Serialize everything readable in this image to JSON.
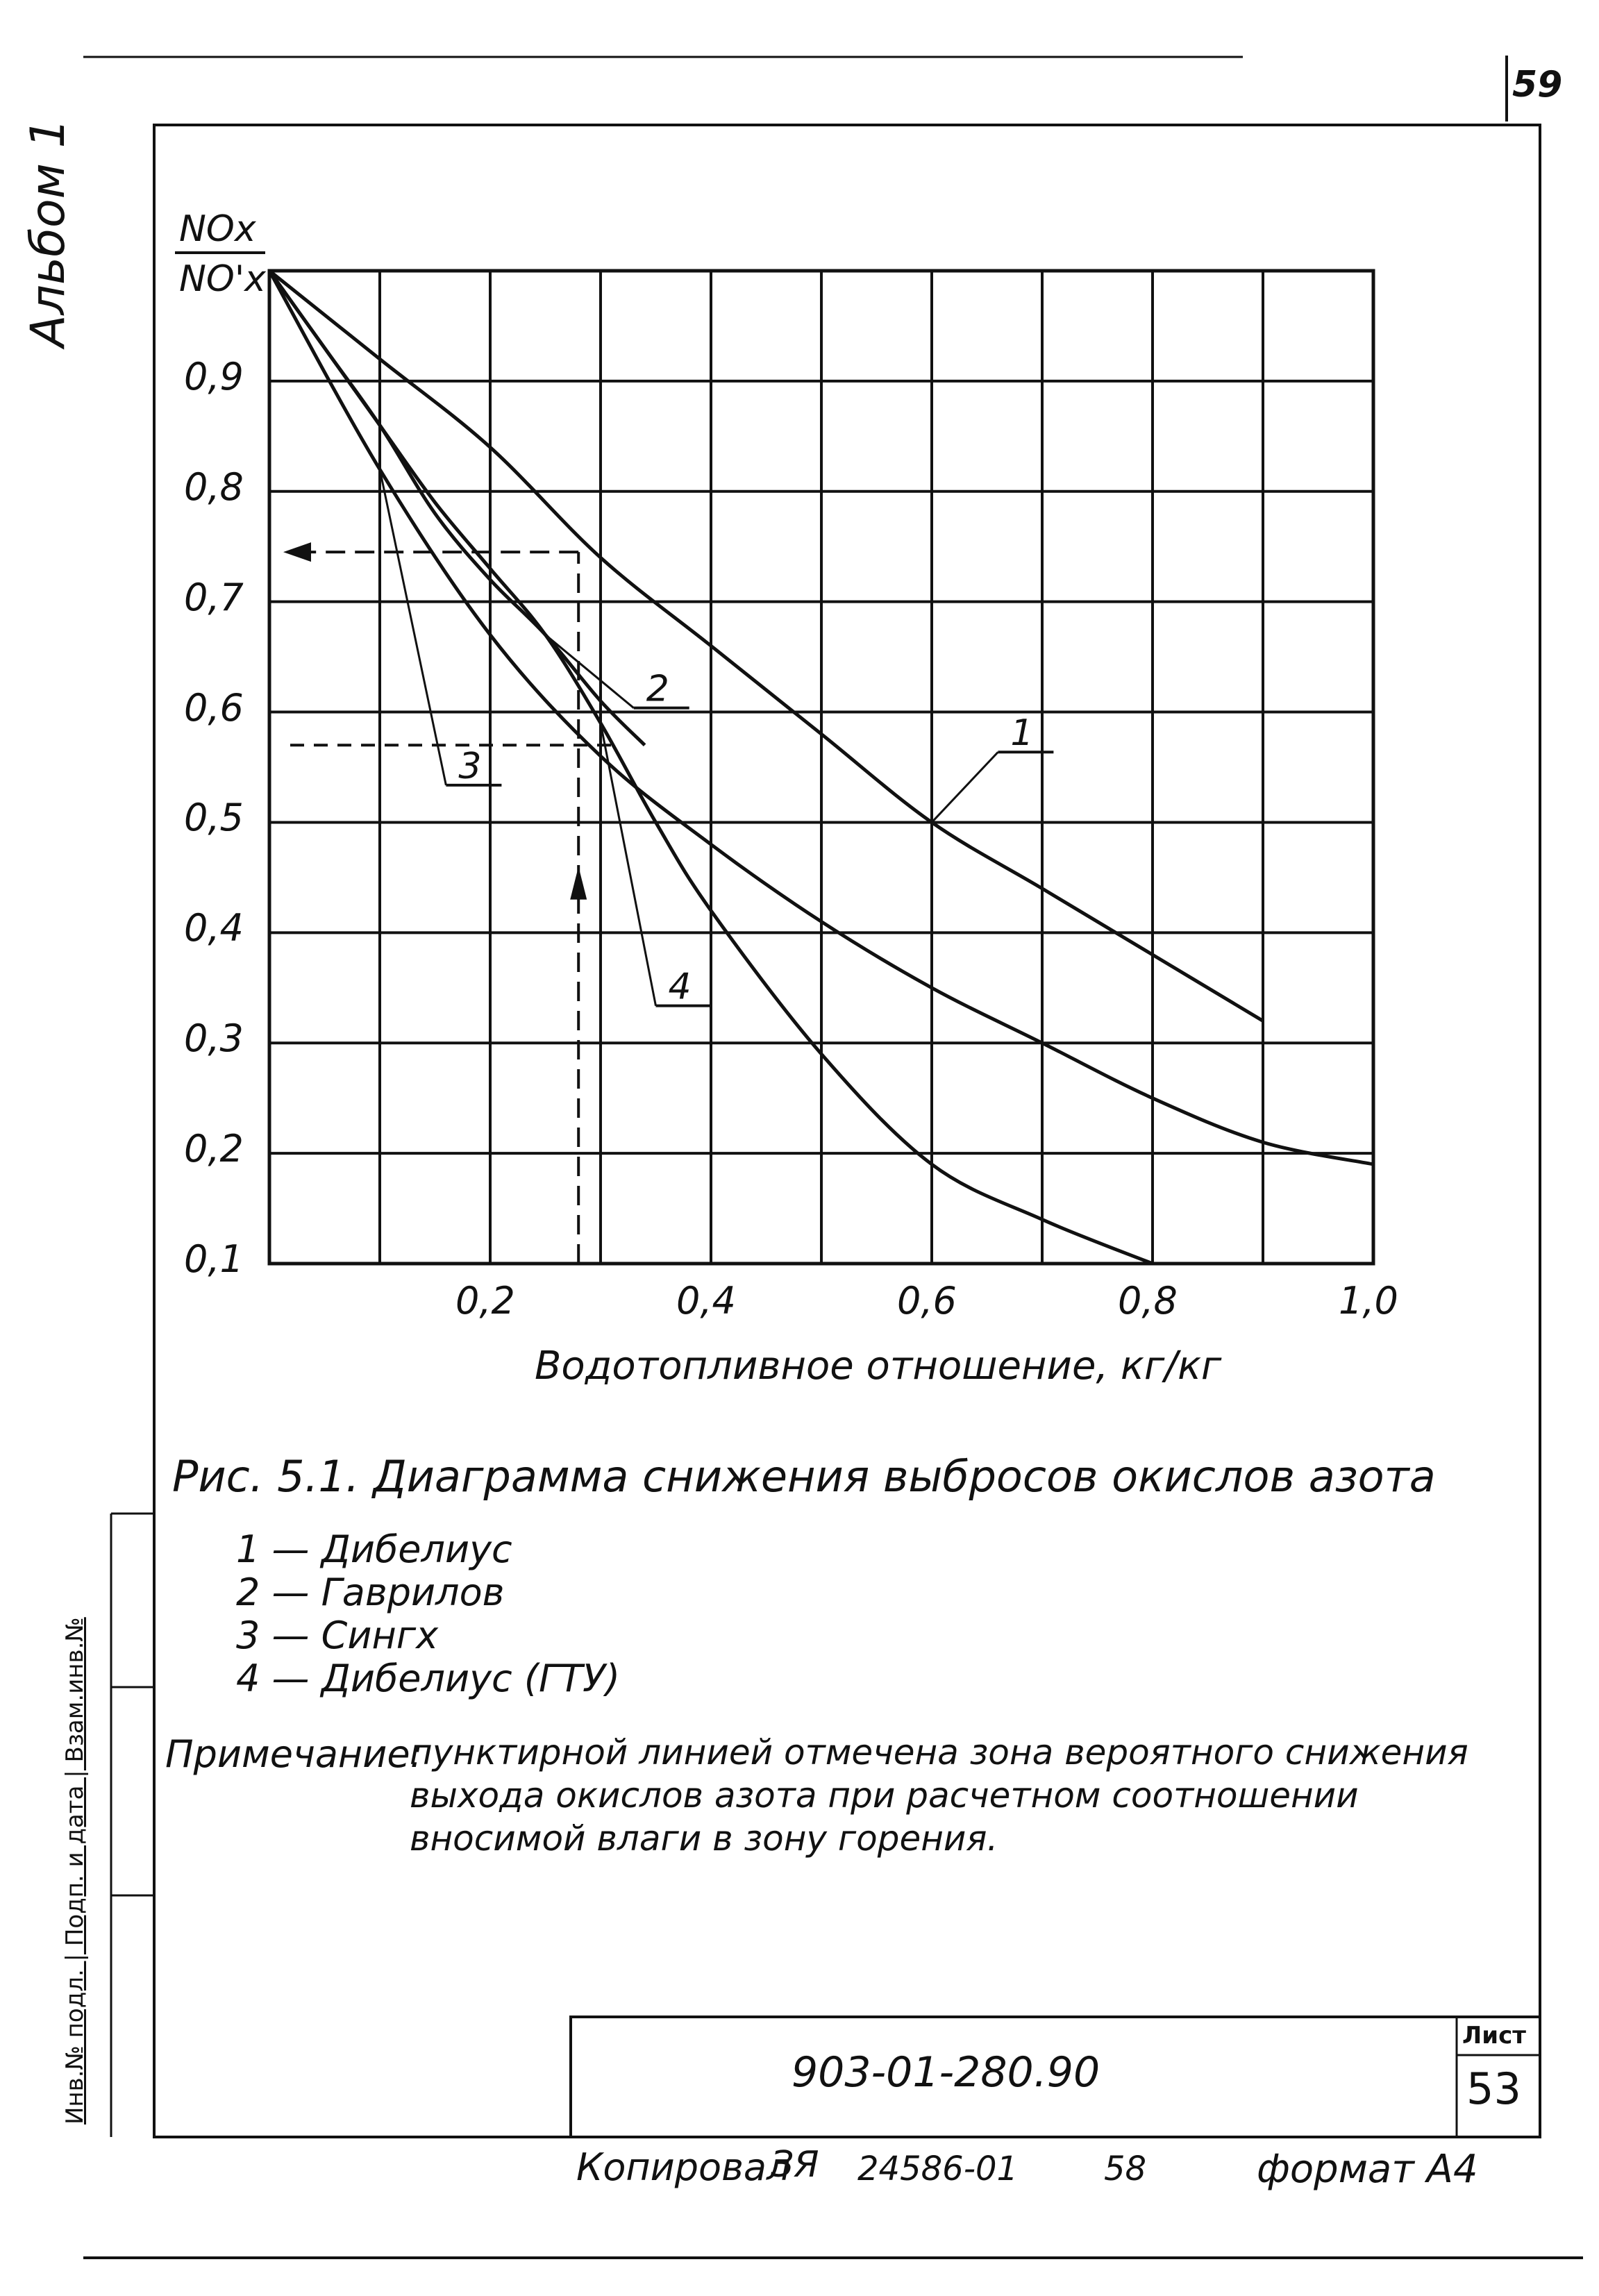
{
  "page": {
    "corner_sheet_number": "59",
    "side_album_label": "Альбом 1",
    "side_stamp_label": "Инв.№ подл. | Подп. и дата | Взам.инв.№"
  },
  "chart_data": {
    "type": "line",
    "ylabel_numerator": "NOx",
    "ylabel_denominator": "NO'x",
    "xlabel": "Водотопливное отношение, кг/кг",
    "xlim": [
      0,
      1.0
    ],
    "ylim": [
      0.1,
      1.0
    ],
    "x_ticks": [
      "0,2",
      "0,4",
      "0,6",
      "0,8",
      "1,0"
    ],
    "x_tick_values": [
      0.2,
      0.4,
      0.6,
      0.8,
      1.0
    ],
    "y_ticks": [
      "0,9",
      "0,8",
      "0,7",
      "0,6",
      "0,5",
      "0,4",
      "0,3",
      "0,2",
      "0,1"
    ],
    "y_tick_values": [
      0.9,
      0.8,
      0.7,
      0.6,
      0.5,
      0.4,
      0.3,
      0.2,
      0.1
    ],
    "grid": true,
    "series": [
      {
        "name": "1",
        "x": [
          0.0,
          0.1,
          0.2,
          0.3,
          0.4,
          0.5,
          0.6,
          0.7,
          0.8,
          0.9
        ],
        "y": [
          1.0,
          0.92,
          0.84,
          0.74,
          0.66,
          0.58,
          0.5,
          0.44,
          0.38,
          0.32
        ]
      },
      {
        "name": "2",
        "x": [
          0.0,
          0.05,
          0.1,
          0.15,
          0.2,
          0.25,
          0.3,
          0.34
        ],
        "y": [
          1.0,
          0.93,
          0.86,
          0.78,
          0.72,
          0.67,
          0.61,
          0.57
        ]
      },
      {
        "name": "3",
        "x": [
          0.0,
          0.1,
          0.2,
          0.3,
          0.4,
          0.5,
          0.6,
          0.7,
          0.8,
          0.9,
          1.0
        ],
        "y": [
          1.0,
          0.82,
          0.67,
          0.56,
          0.48,
          0.41,
          0.35,
          0.3,
          0.25,
          0.21,
          0.19
        ]
      },
      {
        "name": "4",
        "x": [
          0.0,
          0.05,
          0.1,
          0.15,
          0.2,
          0.25,
          0.3,
          0.35,
          0.4,
          0.5,
          0.6,
          0.7,
          0.8
        ],
        "y": [
          1.0,
          0.93,
          0.86,
          0.79,
          0.73,
          0.67,
          0.59,
          0.5,
          0.42,
          0.29,
          0.19,
          0.14,
          0.1
        ]
      }
    ],
    "series_labels": [
      {
        "label": "1",
        "x": 0.66,
        "y": 0.57
      },
      {
        "label": "2",
        "x": 0.33,
        "y": 0.61
      },
      {
        "label": "3",
        "x": 0.16,
        "y": 0.54
      },
      {
        "label": "4",
        "x": 0.35,
        "y": 0.34
      }
    ],
    "annotation": {
      "x": 0.28,
      "y_curve": 0.745,
      "y_lower": 0.57,
      "description": "dashed reference"
    }
  },
  "caption": {
    "title": "Рис. 5.1. Диаграмма снижения выбросов окислов азота",
    "legend": [
      {
        "id": "1",
        "text": "1 — Дибелиус"
      },
      {
        "id": "2",
        "text": "2 — Гаврилов"
      },
      {
        "id": "3",
        "text": "3 — Сингх"
      },
      {
        "id": "4",
        "text": "4 — Дибелиус (ГТУ)"
      }
    ],
    "note_label": "Примечание:",
    "note_lines": [
      "пунктирной линией отмечена зона вероятного снижения",
      "выхода окислов азота при расчетном соотношении",
      "вносимой влаги в зону горения."
    ]
  },
  "title_block": {
    "code": "903-01-280.90",
    "sheet_label": "Лист",
    "sheet_number": "53"
  },
  "footer": {
    "copied": "Копировал",
    "copied_initials": "ЗЯ",
    "order_number": "24586-01",
    "page_number": "58",
    "format": "формат А4"
  }
}
